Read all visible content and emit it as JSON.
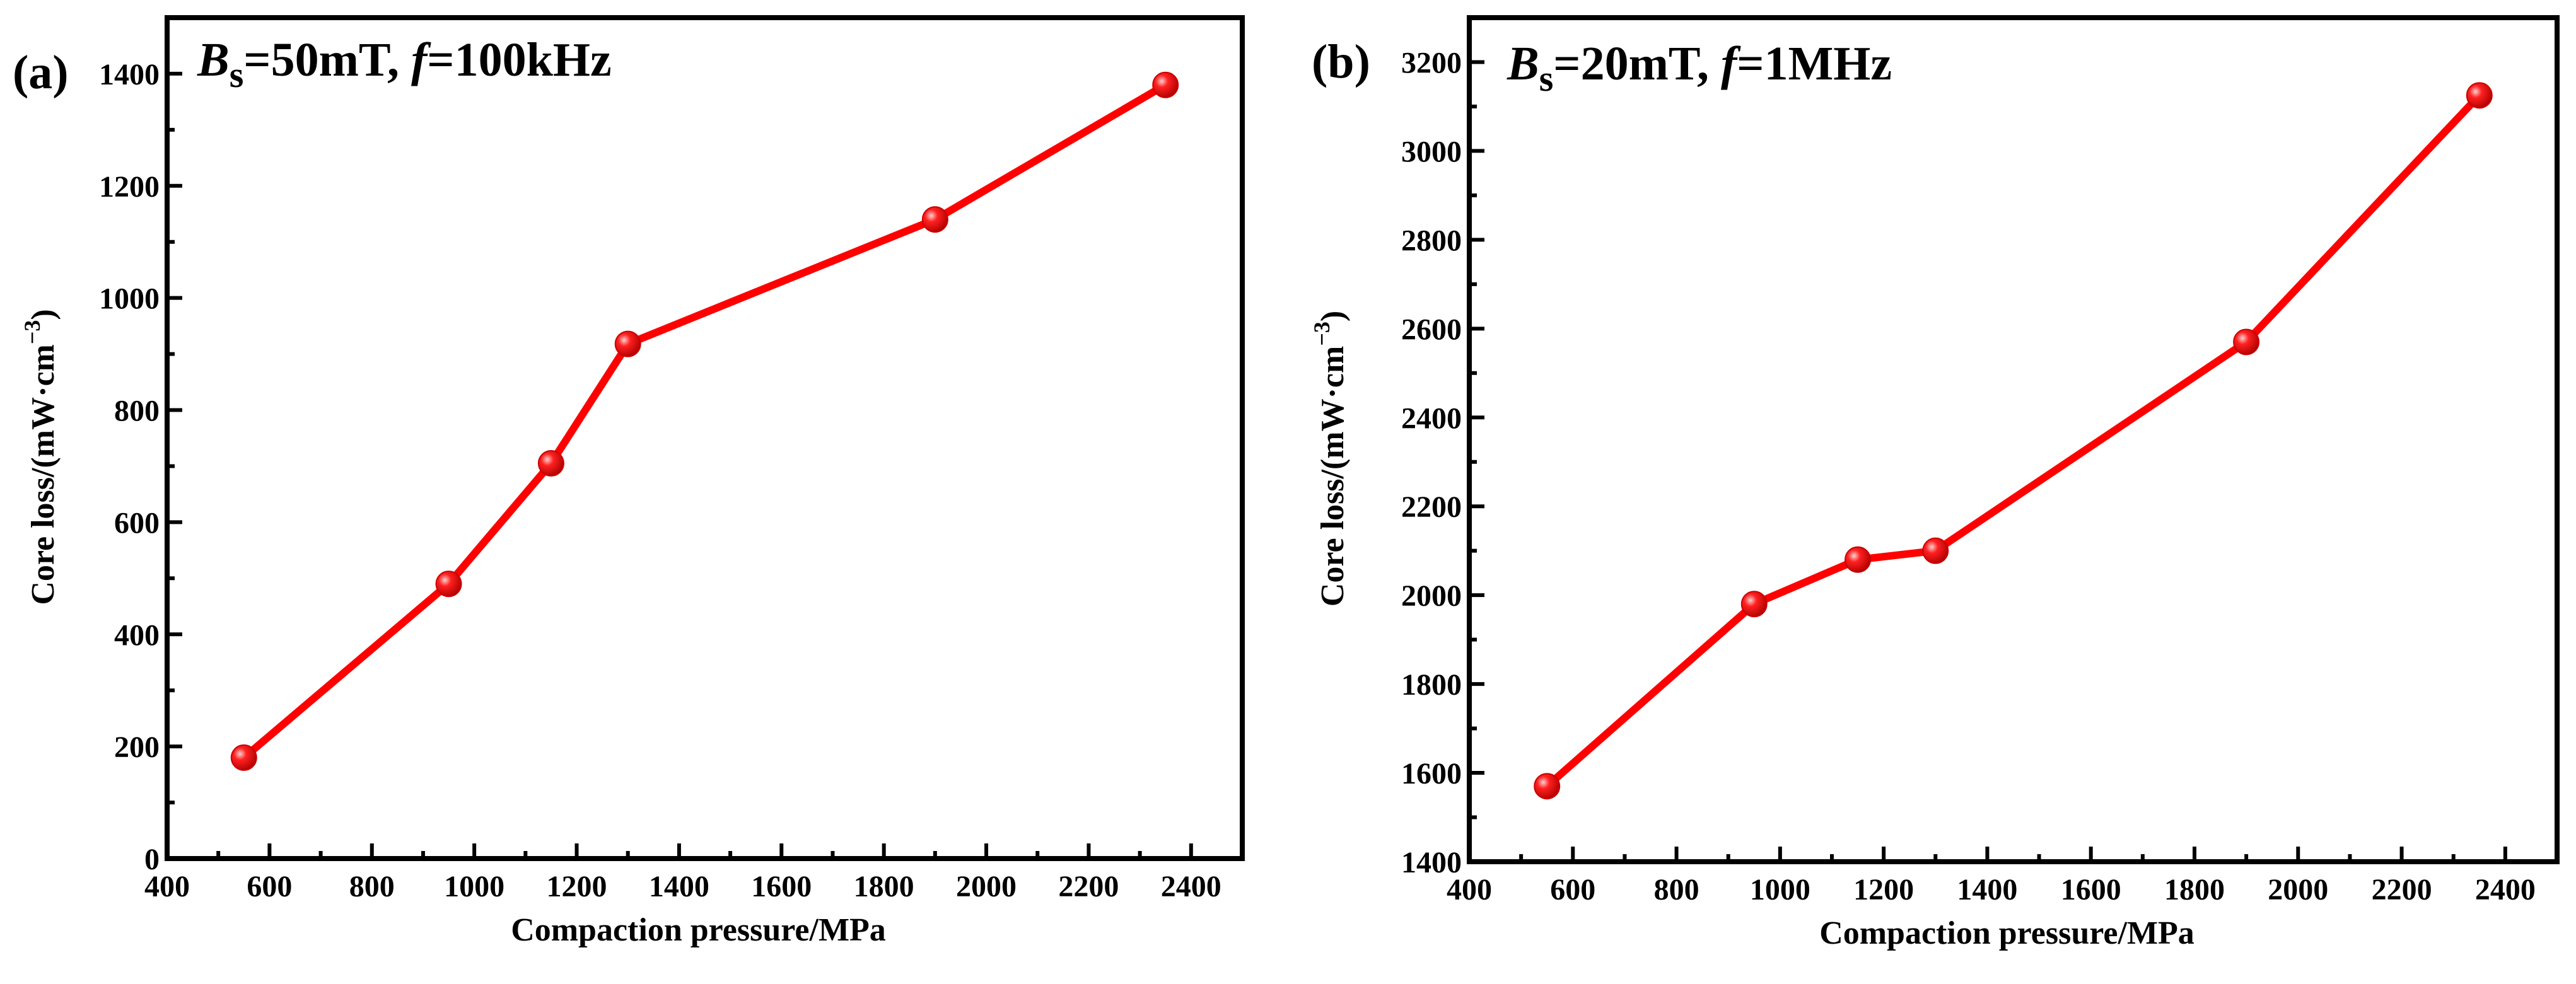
{
  "chart_data": [
    {
      "type": "line",
      "panel_label": "(a)",
      "annotation": {
        "symbol": "B",
        "subscript": "s",
        "text1": "=50mT, ",
        "f_symbol": "f",
        "text2": "=100kHz"
      },
      "xlabel": "Compaction pressure/MPa",
      "ylabel": "Core loss/(mW·cm",
      "ylabel_exp": "−3",
      "ylabel_close": ")",
      "xlim": [
        400,
        2500
      ],
      "ylim": [
        0,
        1500
      ],
      "x_ticks": [
        400,
        600,
        800,
        1000,
        1200,
        1400,
        1600,
        1800,
        2000,
        2200,
        2400
      ],
      "y_ticks": [
        0,
        200,
        400,
        600,
        800,
        1000,
        1200,
        1400
      ],
      "x_minor": 100,
      "y_minor": 100,
      "series": [
        {
          "name": "core loss",
          "color": "#ff0000",
          "x": [
            550,
            950,
            1150,
            1300,
            1900,
            2350
          ],
          "y": [
            180,
            490,
            705,
            918,
            1140,
            1380
          ]
        }
      ]
    },
    {
      "type": "line",
      "panel_label": "(b)",
      "annotation": {
        "symbol": "B",
        "subscript": "s",
        "text1": "=20mT, ",
        "f_symbol": "f",
        "text2": "=1MHz"
      },
      "xlabel": "Compaction pressure/MPa",
      "ylabel": "Core loss/(mW·cm",
      "ylabel_exp": "−3",
      "ylabel_close": ")",
      "xlim": [
        400,
        2500
      ],
      "ylim": [
        1400,
        3300
      ],
      "x_ticks": [
        400,
        600,
        800,
        1000,
        1200,
        1400,
        1600,
        1800,
        2000,
        2200,
        2400
      ],
      "y_ticks": [
        1400,
        1600,
        1800,
        2000,
        2200,
        2400,
        2600,
        2800,
        3000,
        3200
      ],
      "x_minor": 100,
      "y_minor": 100,
      "series": [
        {
          "name": "core loss",
          "color": "#ff0000",
          "x": [
            550,
            950,
            1150,
            1300,
            1900,
            2350
          ],
          "y": [
            1570,
            1980,
            2080,
            2100,
            2570,
            3125
          ]
        }
      ]
    }
  ]
}
